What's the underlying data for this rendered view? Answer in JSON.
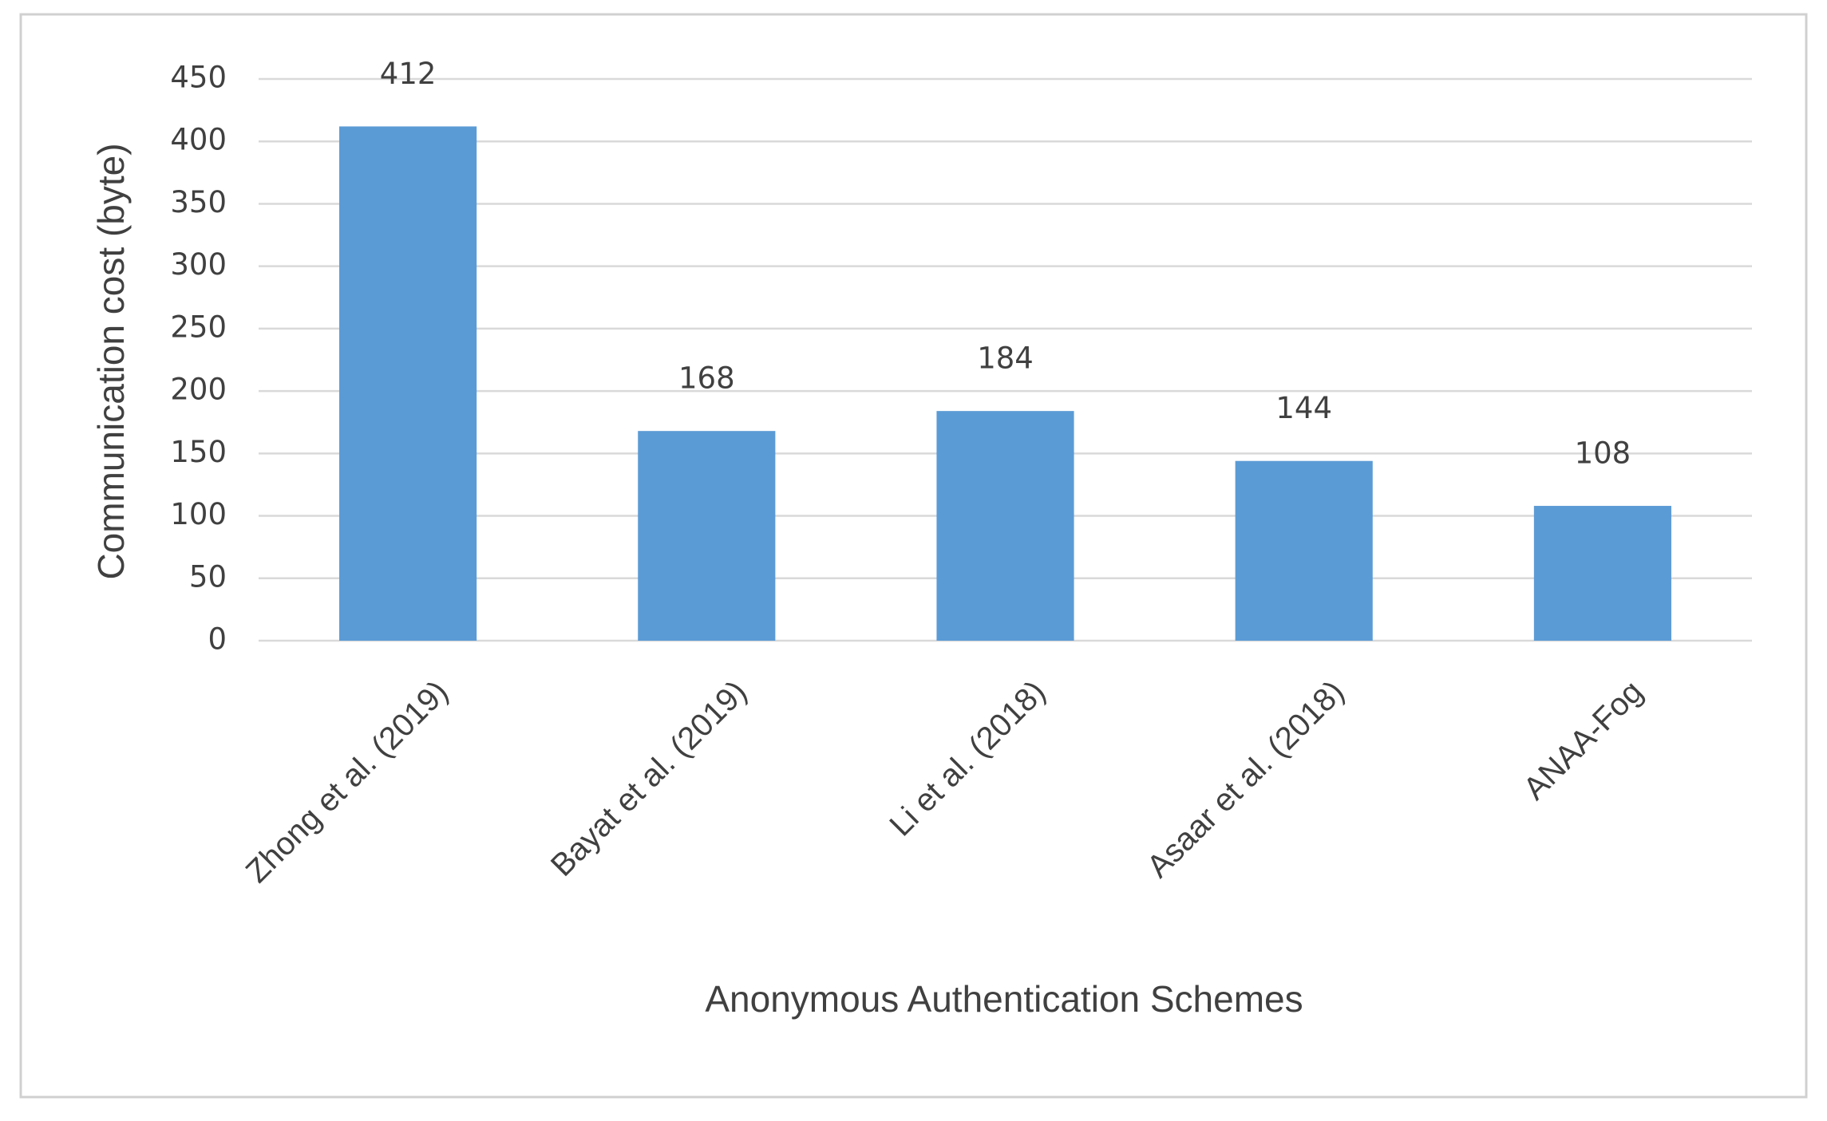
{
  "chart_data": {
    "type": "bar",
    "categories": [
      "Zhong et al. (2019)",
      "Bayat et al. (2019)",
      "Li et al. (2018)",
      "Asaar et al. (2018)",
      "ANAA-Fog"
    ],
    "values": [
      412,
      168,
      184,
      144,
      108
    ],
    "color": "#5b9bd5",
    "x_label": "Anonymous Authentication Schemes",
    "y_label": "Communication cost (byte)",
    "ylim": [
      0,
      450
    ],
    "yticks": [
      0,
      50,
      100,
      150,
      200,
      250,
      300,
      350,
      400,
      450
    ],
    "grid": true
  }
}
